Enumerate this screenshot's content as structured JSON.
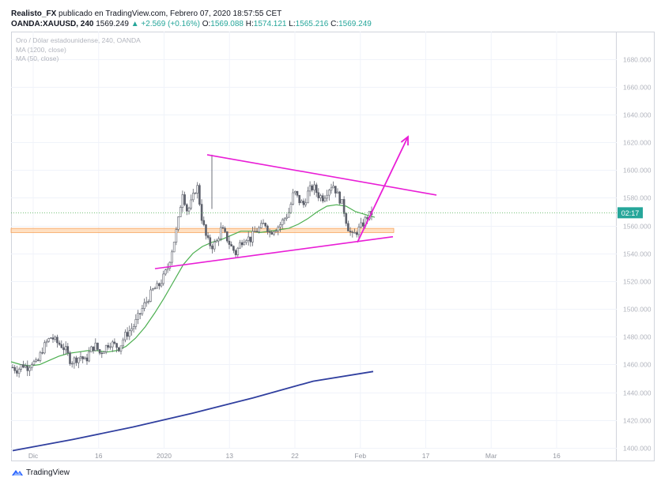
{
  "header": {
    "line1": {
      "user": "Realisto_FX",
      "text": " publicado en TradingView.com, Febrero 07, 2020 18:57:55 CET"
    },
    "symbol": "OANDA:XAUUSD, 240",
    "price": "1569.249",
    "change": "▲ +2.569 (+0.16%)",
    "o_label": "O:",
    "o_value": "1569.088",
    "h_label": "H:",
    "h_value": "1574.121",
    "l_label": "L:",
    "l_value": "1565.216",
    "c_label": "C:",
    "c_value": "1569.249"
  },
  "legend": {
    "title": "Oro / Dólar estadounidense, 240, OANDA",
    "ma1": "MA (1200, close)",
    "ma2": "MA (50, close)"
  },
  "footer": {
    "brand": "TradingView"
  },
  "colors": {
    "up": "#26a69a",
    "down": "#ef5350",
    "candle": "#5d606b",
    "ma50": "#4caf50",
    "ma1200": "#303f9f",
    "drawing": "#e91ed6",
    "zone": "#ffcc99",
    "price_line": "#4caf50"
  },
  "chart_data": {
    "type": "candlestick",
    "symbol": "OANDA:XAUUSD",
    "timeframe": "240",
    "ylim": [
      1400,
      1690
    ],
    "y_ticks": [
      "1680.000",
      "1660.000",
      "1640.000",
      "1620.000",
      "1600.000",
      "1580.000",
      "1560.000",
      "1540.000",
      "1520.000",
      "1500.000",
      "1480.000",
      "1460.000",
      "1440.000",
      "1420.000",
      "1400.000"
    ],
    "x_ticks": [
      "Dic",
      "16",
      "2020",
      "13",
      "22",
      "Feb",
      "17",
      "Mar",
      "16"
    ],
    "current_price": 1569.249,
    "countdown_label": "02:17",
    "close_path": [
      1458,
      1456,
      1460,
      1458,
      1462,
      1460,
      1470,
      1476,
      1480,
      1476,
      1474,
      1470,
      1462,
      1464,
      1466,
      1462,
      1470,
      1474,
      1468,
      1472,
      1476,
      1474,
      1472,
      1480,
      1484,
      1488,
      1495,
      1502,
      1508,
      1514,
      1516,
      1522,
      1530,
      1545,
      1560,
      1585,
      1570,
      1578,
      1590,
      1565,
      1550,
      1545,
      1548,
      1558,
      1552,
      1545,
      1540,
      1548,
      1552,
      1550,
      1556,
      1558,
      1562,
      1555,
      1558,
      1560,
      1565,
      1570,
      1585,
      1578,
      1575,
      1585,
      1588,
      1582,
      1580,
      1586,
      1590,
      1582,
      1575,
      1560,
      1552,
      1556,
      1560,
      1566,
      1569
    ],
    "ma50": [
      1462,
      1460,
      1459,
      1460,
      1463,
      1466,
      1468,
      1469,
      1470,
      1470,
      1469,
      1470,
      1473,
      1479,
      1487,
      1497,
      1508,
      1520,
      1532,
      1540,
      1545,
      1548,
      1550,
      1553,
      1556,
      1556,
      1555,
      1556,
      1557,
      1558,
      1561,
      1565,
      1570,
      1574,
      1575,
      1574,
      1570,
      1568,
      1566
    ],
    "ma1200": [
      1398,
      1406,
      1415,
      1425,
      1436,
      1448,
      1455
    ],
    "zone": [
      1555,
      1558
    ],
    "annotations": {
      "upper_trendline": [
        1611,
        1582
      ],
      "lower_trendline": [
        1529,
        1552
      ],
      "arrow": [
        1548,
        1624
      ]
    }
  }
}
